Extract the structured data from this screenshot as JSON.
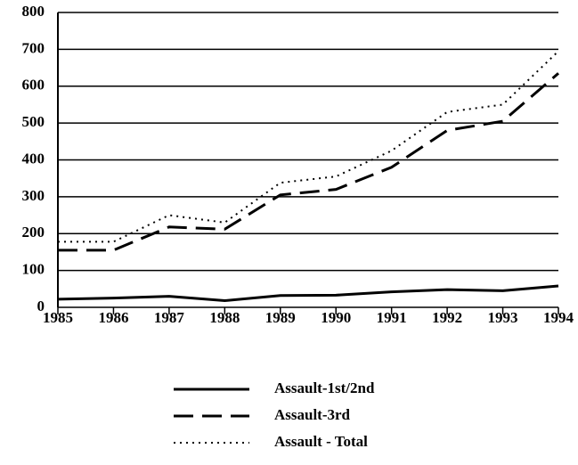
{
  "chart_data": {
    "type": "line",
    "x": [
      1985,
      1986,
      1987,
      1988,
      1989,
      1990,
      1991,
      1992,
      1993,
      1994
    ],
    "xlim": [
      1985,
      1994
    ],
    "xticks": [
      1985,
      1986,
      1987,
      1988,
      1989,
      1990,
      1991,
      1992,
      1993,
      1994
    ],
    "ylim": [
      0,
      800
    ],
    "yticks": [
      0,
      100,
      200,
      300,
      400,
      500,
      600,
      700,
      800
    ],
    "grid": true,
    "legend": "bottom",
    "series": [
      {
        "name": "Assault-1st/2nd",
        "color": "#000000",
        "style": "solid",
        "values": [
          22,
          25,
          30,
          18,
          32,
          33,
          42,
          48,
          45,
          58
        ]
      },
      {
        "name": "Assault-3rd",
        "color": "#000000",
        "style": "dashed",
        "values": [
          155,
          155,
          218,
          212,
          305,
          320,
          380,
          480,
          505,
          635
        ]
      },
      {
        "name": "Assault - Total",
        "color": "#000000",
        "style": "dotted",
        "values": [
          178,
          178,
          250,
          230,
          338,
          355,
          425,
          530,
          550,
          695
        ]
      }
    ]
  }
}
